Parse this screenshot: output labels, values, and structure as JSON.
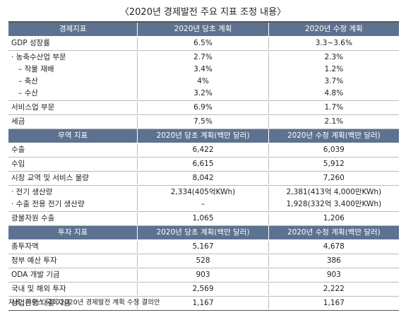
{
  "title": "〈2020년 경제발전 주요 지표 조정 내용〉",
  "sections": [
    {
      "header": [
        "경제지표",
        "2020년 당초 계획",
        "2020년 수정 계획"
      ],
      "groups": [
        [
          [
            "GDP 성장률",
            "6.5%",
            "3.3~3.6%"
          ]
        ],
        [
          [
            "· 농축수산업 부문",
            "2.7%",
            "2.3%"
          ],
          [
            "– 작물 재배",
            "3.4%",
            "1.2%"
          ],
          [
            "– 축산",
            "4%",
            "3.7%"
          ],
          [
            "– 수산",
            "3.2%",
            "4.8%"
          ]
        ],
        [
          [
            "서비스업 부문",
            "6.9%",
            "1.7%"
          ]
        ],
        [
          [
            "세금",
            "7.5%",
            "2.1%"
          ]
        ]
      ]
    },
    {
      "header": [
        "무역 지표",
        "2020년 당초 계획(백만 달러)",
        "2020년 수정 계획(백만 달러)"
      ],
      "groups": [
        [
          [
            "수출",
            "6,422",
            "6,039"
          ]
        ],
        [
          [
            "수입",
            "6,615",
            "5,912"
          ]
        ],
        [
          [
            "시장 교역 및 서비스 물량",
            "8,042",
            "7,260"
          ]
        ],
        [
          [
            "· 전기 생산량",
            "2,334(405억KWh)",
            "2,381(413억 4,000만KWh)"
          ],
          [
            "· 수출 전용 전기 생산량",
            "–",
            "1,928(332억 3,400만KWh)"
          ]
        ],
        [
          [
            "광물자원 수출",
            "1,065",
            "1,206"
          ]
        ]
      ]
    },
    {
      "header": [
        "투자 지표",
        "2020년 당초 계획(백만 달러)",
        "2020년 수정 계획(백만 달러)"
      ],
      "groups": [
        [
          [
            "총투자액",
            "5,167",
            "4,678"
          ]
        ],
        [
          [
            "정부 예산 투자",
            "528",
            "386"
          ]
        ],
        [
          [
            "ODA 개발 기금",
            "903",
            "903"
          ]
        ],
        [
          [
            "국내 및 해외 투자",
            "2,569",
            "2,222"
          ]
        ],
        [
          [
            "상업은행 대출 자금",
            "1,167",
            "1,167"
          ]
        ]
      ]
    }
  ],
  "source": "자료: 라오스 국회 2020년 경제발전 계획 수정 결의안"
}
